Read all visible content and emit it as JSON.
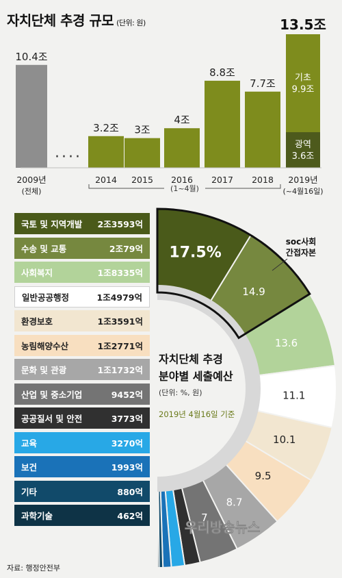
{
  "title": "자치단체 추경 규모",
  "title_unit": "(단위: 원)",
  "top_chart": {
    "chart_data": {
      "type": "bar",
      "categories": [
        "2009년",
        "2014",
        "2015",
        "2016",
        "2017",
        "2018",
        "2019년"
      ],
      "category_notes": [
        "(전체)",
        "",
        "",
        "",
        "",
        "",
        "(~4월16일)"
      ],
      "values": [
        10.4,
        3.2,
        3,
        4,
        8.8,
        7.7,
        13.5
      ],
      "value_labels": [
        "10.4조",
        "3.2조",
        "3조",
        "4조",
        "8.8조",
        "7.7조",
        "13.5조"
      ],
      "stack_2019": [
        {
          "name": "광역",
          "value_label": "3.6조",
          "value": 3.6,
          "color": "#4d5a1c"
        },
        {
          "name": "기초",
          "value_label": "9.9조",
          "value": 9.9,
          "color": "#7e8c1d"
        }
      ],
      "colors": {
        "2009": "#8e8e8e",
        "default": "#7e8c1d",
        "range_note": "#333333"
      },
      "ellipsis": "····",
      "range_note": "(1~4월)",
      "ylim": [
        0,
        14
      ]
    }
  },
  "bottom_chart": {
    "center_title": [
      "자치단체 추경",
      "분야별 세출예산"
    ],
    "center_unit": "(단위: %, 원)",
    "center_date": "2019년 4월16일 기준",
    "soc_label": [
      "soc사회",
      "간접자본"
    ],
    "chart_data": {
      "type": "pie",
      "shape": "half-donut",
      "categories": [
        "국토 및 지역개발",
        "수송 및 교통",
        "사회복지",
        "일반공공행정",
        "환경보호",
        "농림해양수산",
        "문화 및 관광",
        "산업 및 중소기업",
        "공공질서 및 안전",
        "교육",
        "보건",
        "기타",
        "과학기술"
      ],
      "amounts": [
        "2조3593억",
        "2조79억",
        "1조8335억",
        "1조4979억",
        "1조3591억",
        "1조2771억",
        "1조1732억",
        "9452억",
        "3773억",
        "3270억",
        "1993억",
        "880억",
        "462억"
      ],
      "values": [
        17.5,
        14.9,
        13.6,
        11.1,
        10.1,
        9.5,
        8.7,
        7.0,
        2.8,
        2.4,
        1.5,
        0.7,
        0.3
      ],
      "value_labels": [
        "17.5%",
        "14.9",
        "13.6",
        "11.1",
        "10.1",
        "9.5",
        "8.7",
        "7",
        "",
        "",
        "",
        "",
        ""
      ],
      "colors": [
        "#4a5a1a",
        "#76883f",
        "#b2d39a",
        "#ffffff",
        "#f2e6d0",
        "#f8dfc0",
        "#a7a7a7",
        "#747474",
        "#303030",
        "#28a8e6",
        "#1a72b8",
        "#114a6a",
        "#0e3346"
      ],
      "text_colors": [
        "#ffffff",
        "#ffffff",
        "#ffffff",
        "#222222",
        "#222222",
        "#222222",
        "#ffffff",
        "#ffffff",
        "#ffffff",
        "#ffffff",
        "#ffffff",
        "#ffffff",
        "#ffffff"
      ]
    }
  },
  "source": "자료: 행정안전부",
  "watermark": "우리방송뉴스"
}
